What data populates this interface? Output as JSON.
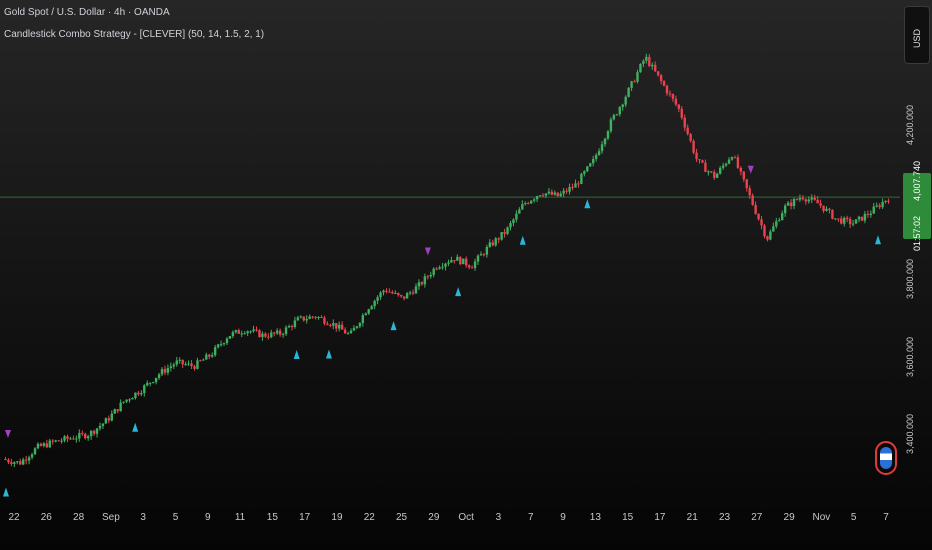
{
  "legend": {
    "symbol": "Gold Spot / U.S. Dollar · 4h · OANDA",
    "strategy": "Candlestick Combo Strategy - [CLEVER] (50, 14, 1.5, 2, 1)"
  },
  "currency": "USD",
  "last_price": {
    "value": "4,007.740",
    "countdown": "01:57:02"
  },
  "colors": {
    "up": "#3fb05f",
    "down": "#e8434f",
    "buy": "#29b6d9",
    "sell": "#a23fc2",
    "last_line": "#2e6b35"
  },
  "chart_data": {
    "type": "candlestick",
    "ylim": [
      3250,
      4440
    ],
    "y_ticks": [
      {
        "value": 3400,
        "label": "3,400.000"
      },
      {
        "value": 3600,
        "label": "3,600.000"
      },
      {
        "value": 3800,
        "label": "3,800.000"
      },
      {
        "value": 4200,
        "label": "4,200.000"
      }
    ],
    "x_labels": [
      "22",
      "26",
      "28",
      "Sep",
      "3",
      "5",
      "9",
      "11",
      "15",
      "17",
      "19",
      "22",
      "25",
      "29",
      "Oct",
      "3",
      "7",
      "9",
      "13",
      "15",
      "17",
      "21",
      "23",
      "27",
      "29",
      "Nov",
      "5",
      "7"
    ],
    "last_value": 4007.74,
    "buy_signals_at_label": [
      "19",
      "22",
      "25",
      "Oct",
      "3",
      "7",
      "13",
      "17",
      "7"
    ],
    "sell_signals_at_label": [
      "22",
      "27",
      "29"
    ],
    "path_points": [
      [
        0,
        3330
      ],
      [
        1,
        3320
      ],
      [
        2,
        3360
      ],
      [
        3,
        3375
      ],
      [
        4,
        3385
      ],
      [
        5,
        3395
      ],
      [
        6,
        3430
      ],
      [
        7,
        3480
      ],
      [
        8,
        3510
      ],
      [
        9,
        3550
      ],
      [
        10,
        3580
      ],
      [
        11,
        3570
      ],
      [
        12,
        3600
      ],
      [
        13,
        3650
      ],
      [
        14,
        3665
      ],
      [
        15,
        3650
      ],
      [
        16,
        3655
      ],
      [
        17,
        3690
      ],
      [
        18,
        3700
      ],
      [
        19,
        3680
      ],
      [
        20,
        3650
      ],
      [
        21,
        3720
      ],
      [
        22,
        3770
      ],
      [
        23,
        3745
      ],
      [
        24,
        3780
      ],
      [
        25,
        3830
      ],
      [
        26,
        3850
      ],
      [
        27,
        3830
      ],
      [
        28,
        3880
      ],
      [
        29,
        3920
      ],
      [
        30,
        3990
      ],
      [
        31,
        4020
      ],
      [
        32,
        4010
      ],
      [
        33,
        4040
      ],
      [
        34,
        4100
      ],
      [
        35,
        4200
      ],
      [
        36,
        4280
      ],
      [
        37,
        4370
      ],
      [
        38,
        4300
      ],
      [
        39,
        4230
      ],
      [
        40,
        4100
      ],
      [
        41,
        4060
      ],
      [
        42,
        4120
      ],
      [
        43,
        4010
      ],
      [
        44,
        3900
      ],
      [
        45,
        3980
      ],
      [
        46,
        4010
      ],
      [
        47,
        3990
      ],
      [
        48,
        3950
      ],
      [
        49,
        3940
      ],
      [
        50,
        3970
      ],
      [
        51,
        4007
      ]
    ]
  }
}
